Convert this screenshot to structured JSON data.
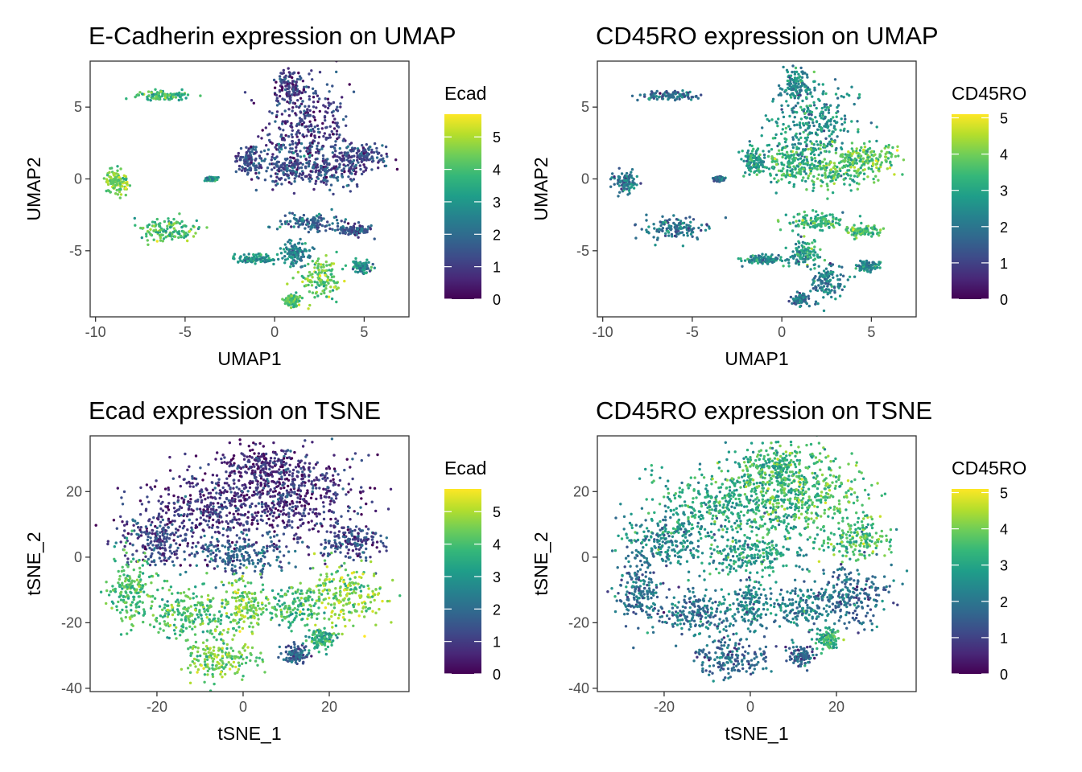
{
  "chart_data": [
    {
      "type": "scatter",
      "title": "E-Cadherin expression on UMAP",
      "xlabel": "UMAP1",
      "ylabel": "UMAP2",
      "xlim": [
        -10.3,
        7.5
      ],
      "ylim": [
        -9.6,
        8.2
      ],
      "xticks": [
        "-10",
        "-5",
        "0",
        "5"
      ],
      "xtick_values": [
        -10,
        -5,
        0,
        5
      ],
      "yticks": [
        "-5",
        "0",
        "5"
      ],
      "ytick_values": [
        -5,
        0,
        5
      ],
      "legend": {
        "title": "Ecad",
        "min": 0,
        "max": 5.7,
        "ticks": [
          "0",
          "1",
          "2",
          "3",
          "4",
          "5"
        ],
        "tick_values": [
          0,
          1,
          2,
          3,
          4,
          5
        ],
        "placement": "right"
      },
      "colormap": "viridis",
      "clusters": [
        {
          "cx": 1.8,
          "cy": 3.6,
          "sx": 1.6,
          "sy": 2.2,
          "v": 1.0
        },
        {
          "cx": 0.8,
          "cy": 6.5,
          "sx": 0.5,
          "sy": 0.8,
          "v": 1.0
        },
        {
          "cx": 4.8,
          "cy": 1.5,
          "sx": 1.2,
          "sy": 0.7,
          "v": 1.2
        },
        {
          "cx": 3.0,
          "cy": 0.6,
          "sx": 1.5,
          "sy": 0.8,
          "v": 1.3
        },
        {
          "cx": 0.5,
          "cy": 1.0,
          "sx": 1.0,
          "sy": 1.0,
          "v": 1.5
        },
        {
          "cx": -1.5,
          "cy": 1.3,
          "sx": 0.4,
          "sy": 0.6,
          "v": 1.4
        },
        {
          "cx": -6.3,
          "cy": 5.8,
          "sx": 1.0,
          "sy": 0.22,
          "v": 3.8
        },
        {
          "cx": -8.8,
          "cy": -0.2,
          "sx": 0.45,
          "sy": 0.5,
          "v": 4.5
        },
        {
          "cx": -6.0,
          "cy": -3.5,
          "sx": 1.2,
          "sy": 0.55,
          "v": 4.0
        },
        {
          "cx": -3.5,
          "cy": 0.0,
          "sx": 0.2,
          "sy": 0.1,
          "v": 3.0
        },
        {
          "cx": 2.0,
          "cy": -3.0,
          "sx": 1.2,
          "sy": 0.4,
          "v": 1.8
        },
        {
          "cx": 4.5,
          "cy": -3.6,
          "sx": 0.6,
          "sy": 0.25,
          "v": 1.5
        },
        {
          "cx": 1.2,
          "cy": -5.2,
          "sx": 0.6,
          "sy": 0.6,
          "v": 2.5
        },
        {
          "cx": -1.0,
          "cy": -5.6,
          "sx": 0.8,
          "sy": 0.2,
          "v": 3.0
        },
        {
          "cx": 2.5,
          "cy": -7.0,
          "sx": 0.7,
          "sy": 0.9,
          "v": 4.3
        },
        {
          "cx": 1.0,
          "cy": -8.4,
          "sx": 0.3,
          "sy": 0.25,
          "v": 4.0
        },
        {
          "cx": 4.8,
          "cy": -6.1,
          "sx": 0.4,
          "sy": 0.25,
          "v": 2.8
        }
      ]
    },
    {
      "type": "scatter",
      "title": "CD45RO expression on UMAP",
      "xlabel": "UMAP1",
      "ylabel": "UMAP2",
      "xlim": [
        -10.3,
        7.5
      ],
      "ylim": [
        -9.6,
        8.2
      ],
      "xticks": [
        "-10",
        "-5",
        "0",
        "5"
      ],
      "xtick_values": [
        -10,
        -5,
        0,
        5
      ],
      "yticks": [
        "-5",
        "0",
        "5"
      ],
      "ytick_values": [
        -5,
        0,
        5
      ],
      "legend": {
        "title": "CD45RO",
        "min": 0,
        "max": 5.1,
        "ticks": [
          "0",
          "1",
          "2",
          "3",
          "4",
          "5"
        ],
        "tick_values": [
          0,
          1,
          2,
          3,
          4,
          5
        ],
        "placement": "right"
      },
      "colormap": "viridis",
      "clusters": [
        {
          "cx": 1.8,
          "cy": 3.6,
          "sx": 1.6,
          "sy": 2.2,
          "v": 2.6
        },
        {
          "cx": 0.8,
          "cy": 6.5,
          "sx": 0.5,
          "sy": 0.8,
          "v": 2.3
        },
        {
          "cx": 4.8,
          "cy": 1.5,
          "sx": 1.2,
          "sy": 0.7,
          "v": 3.7
        },
        {
          "cx": 3.0,
          "cy": 0.6,
          "sx": 1.5,
          "sy": 0.8,
          "v": 3.6
        },
        {
          "cx": 0.5,
          "cy": 1.0,
          "sx": 1.0,
          "sy": 1.0,
          "v": 3.2
        },
        {
          "cx": -1.5,
          "cy": 1.3,
          "sx": 0.4,
          "sy": 0.6,
          "v": 2.8
        },
        {
          "cx": -6.3,
          "cy": 5.8,
          "sx": 1.0,
          "sy": 0.22,
          "v": 1.8
        },
        {
          "cx": -8.8,
          "cy": -0.2,
          "sx": 0.45,
          "sy": 0.5,
          "v": 2.0
        },
        {
          "cx": -6.0,
          "cy": -3.5,
          "sx": 1.2,
          "sy": 0.55,
          "v": 1.9
        },
        {
          "cx": -3.5,
          "cy": 0.0,
          "sx": 0.2,
          "sy": 0.1,
          "v": 2.0
        },
        {
          "cx": 2.0,
          "cy": -3.0,
          "sx": 1.2,
          "sy": 0.4,
          "v": 3.3
        },
        {
          "cx": 4.5,
          "cy": -3.6,
          "sx": 0.6,
          "sy": 0.25,
          "v": 3.5
        },
        {
          "cx": 1.2,
          "cy": -5.2,
          "sx": 0.6,
          "sy": 0.6,
          "v": 2.8
        },
        {
          "cx": -1.0,
          "cy": -5.6,
          "sx": 0.8,
          "sy": 0.2,
          "v": 2.5
        },
        {
          "cx": 2.5,
          "cy": -7.0,
          "sx": 0.7,
          "sy": 0.9,
          "v": 2.2
        },
        {
          "cx": 1.0,
          "cy": -8.4,
          "sx": 0.3,
          "sy": 0.25,
          "v": 2.0
        },
        {
          "cx": 4.8,
          "cy": -6.1,
          "sx": 0.4,
          "sy": 0.25,
          "v": 2.3
        }
      ]
    },
    {
      "type": "scatter",
      "title": "Ecad expression on TSNE",
      "xlabel": "tSNE_1",
      "ylabel": "tSNE_2",
      "xlim": [
        -35.5,
        38.5
      ],
      "ylim": [
        -41,
        37
      ],
      "xticks": [
        "-20",
        "0",
        "20"
      ],
      "xtick_values": [
        -20,
        0,
        20
      ],
      "yticks": [
        "-40",
        "-20",
        "0",
        "20"
      ],
      "ytick_values": [
        -40,
        -20,
        0,
        20
      ],
      "legend": {
        "title": "Ecad",
        "min": 0,
        "max": 5.7,
        "ticks": [
          "0",
          "1",
          "2",
          "3",
          "4",
          "5"
        ],
        "tick_values": [
          0,
          1,
          2,
          3,
          4,
          5
        ],
        "placement": "right"
      },
      "colormap": "viridis",
      "clusters": [
        {
          "cx": -5,
          "cy": 15,
          "sx": 14,
          "sy": 8,
          "v": 0.8
        },
        {
          "cx": 12,
          "cy": 20,
          "sx": 11,
          "sy": 8,
          "v": 0.8
        },
        {
          "cx": -20,
          "cy": 5,
          "sx": 6,
          "sy": 5,
          "v": 1.2
        },
        {
          "cx": 25,
          "cy": 5,
          "sx": 5,
          "sy": 4,
          "v": 1.3
        },
        {
          "cx": 5,
          "cy": 28,
          "sx": 6,
          "sy": 4,
          "v": 0.7
        },
        {
          "cx": 0,
          "cy": 0,
          "sx": 8,
          "sy": 4,
          "v": 1.8
        },
        {
          "cx": -26,
          "cy": -10,
          "sx": 3.5,
          "sy": 7,
          "v": 4.0
        },
        {
          "cx": -12,
          "cy": -17,
          "sx": 7,
          "sy": 5,
          "v": 4.0
        },
        {
          "cx": 0,
          "cy": -15,
          "sx": 3,
          "sy": 5,
          "v": 4.5
        },
        {
          "cx": 12,
          "cy": -15,
          "sx": 5,
          "sy": 4,
          "v": 3.8
        },
        {
          "cx": 24,
          "cy": -12,
          "sx": 6,
          "sy": 6,
          "v": 4.6
        },
        {
          "cx": -5,
          "cy": -31,
          "sx": 6,
          "sy": 4,
          "v": 4.5
        },
        {
          "cx": 12,
          "cy": -30,
          "sx": 2,
          "sy": 2,
          "v": 1.8
        },
        {
          "cx": 18,
          "cy": -25,
          "sx": 2,
          "sy": 2,
          "v": 3.5
        }
      ]
    },
    {
      "type": "scatter",
      "title": "CD45RO expression on TSNE",
      "xlabel": "tSNE_1",
      "ylabel": "tSNE_2",
      "xlim": [
        -35.5,
        38.5
      ],
      "ylim": [
        -41,
        37
      ],
      "xticks": [
        "-20",
        "0",
        "20"
      ],
      "xtick_values": [
        -20,
        0,
        20
      ],
      "yticks": [
        "-40",
        "-20",
        "0",
        "20"
      ],
      "ytick_values": [
        -40,
        -20,
        0,
        20
      ],
      "legend": {
        "title": "CD45RO",
        "min": 0,
        "max": 5.1,
        "ticks": [
          "0",
          "1",
          "2",
          "3",
          "4",
          "5"
        ],
        "tick_values": [
          0,
          1,
          2,
          3,
          4,
          5
        ],
        "placement": "right"
      },
      "colormap": "viridis",
      "clusters": [
        {
          "cx": -5,
          "cy": 15,
          "sx": 14,
          "sy": 8,
          "v": 3.0
        },
        {
          "cx": 12,
          "cy": 20,
          "sx": 11,
          "sy": 8,
          "v": 3.6
        },
        {
          "cx": -20,
          "cy": 5,
          "sx": 6,
          "sy": 5,
          "v": 2.3
        },
        {
          "cx": 25,
          "cy": 5,
          "sx": 5,
          "sy": 4,
          "v": 3.5
        },
        {
          "cx": 5,
          "cy": 28,
          "sx": 6,
          "sy": 4,
          "v": 3.3
        },
        {
          "cx": 0,
          "cy": 0,
          "sx": 8,
          "sy": 4,
          "v": 2.8
        },
        {
          "cx": -26,
          "cy": -10,
          "sx": 3.5,
          "sy": 7,
          "v": 1.9
        },
        {
          "cx": -12,
          "cy": -17,
          "sx": 7,
          "sy": 5,
          "v": 2.0
        },
        {
          "cx": 0,
          "cy": -15,
          "sx": 3,
          "sy": 5,
          "v": 2.3
        },
        {
          "cx": 12,
          "cy": -15,
          "sx": 5,
          "sy": 4,
          "v": 2.2
        },
        {
          "cx": 24,
          "cy": -12,
          "sx": 6,
          "sy": 6,
          "v": 1.8
        },
        {
          "cx": -5,
          "cy": -31,
          "sx": 6,
          "sy": 4,
          "v": 1.8
        },
        {
          "cx": 12,
          "cy": -30,
          "sx": 2,
          "sy": 2,
          "v": 1.6
        },
        {
          "cx": 18,
          "cy": -25,
          "sx": 2,
          "sy": 2,
          "v": 3.2
        }
      ]
    }
  ]
}
